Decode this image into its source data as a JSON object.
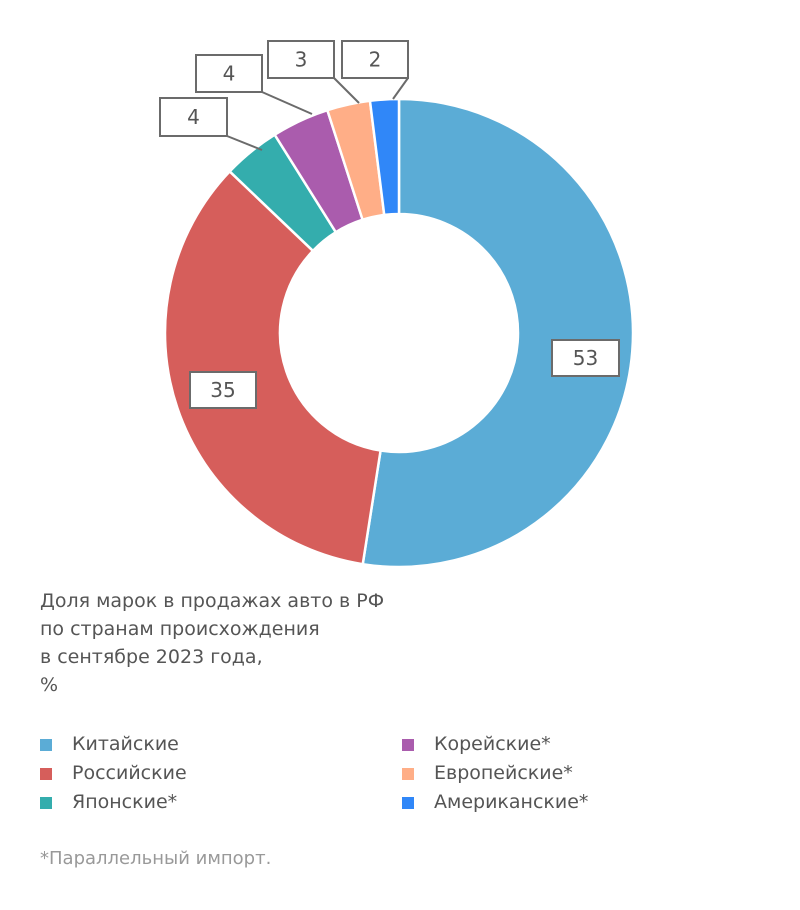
{
  "chart_data": {
    "type": "pie",
    "variant": "donut",
    "title": "Доля марок в продажах авто в РФ по странам происхождения в сентябре 2023 года, %",
    "title_lines": [
      "Доля марок в продажах авто в РФ",
      "по странам происхождения",
      "в сентябре 2023 года,",
      "%"
    ],
    "categories": [
      "Китайские",
      "Российские",
      "Японские*",
      "Корейские*",
      "Европейские*",
      "Американские*"
    ],
    "values": [
      53,
      35,
      4,
      4,
      3,
      2
    ],
    "data_labels": [
      "53",
      "35",
      "4",
      "4",
      "3",
      "2"
    ],
    "colors": [
      "#5BACD6",
      "#D65E5B",
      "#34ADAD",
      "#AA5CAD",
      "#FFAE87",
      "#3087F8"
    ],
    "legend_position": "bottom",
    "footnote": "*Параллельный импорт."
  }
}
